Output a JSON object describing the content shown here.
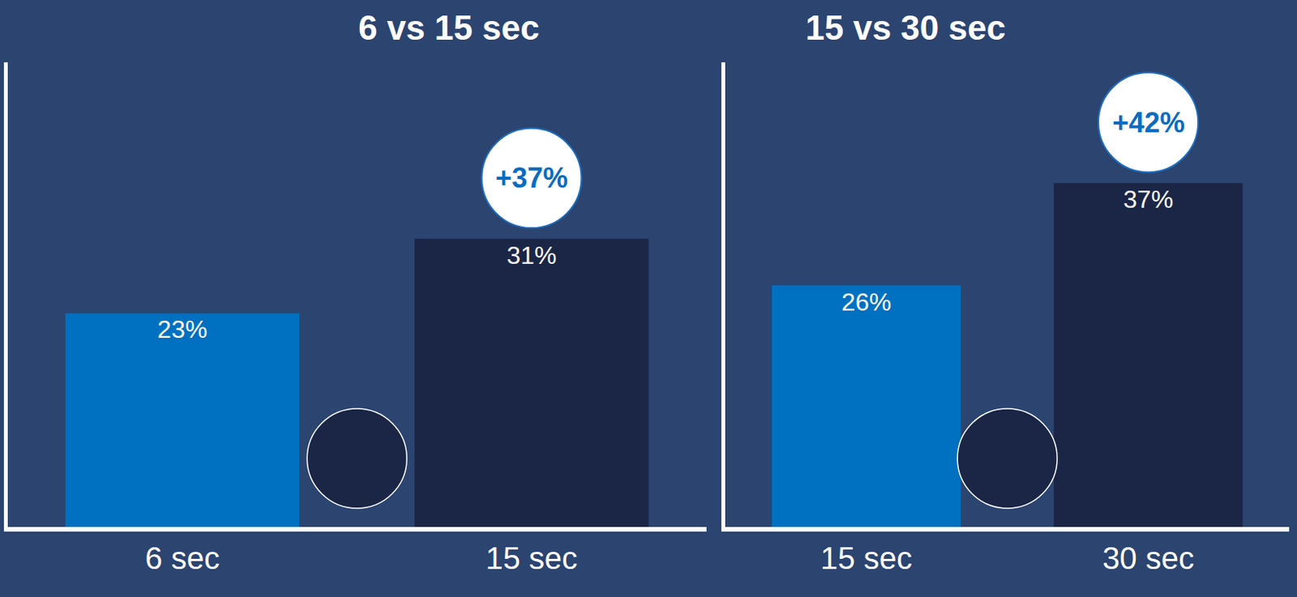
{
  "chart_data": [
    {
      "type": "bar",
      "title": "6 vs 15 sec",
      "categories": [
        "6 sec",
        "15 sec"
      ],
      "values": [
        23,
        31
      ],
      "value_labels": [
        "23%",
        "31%"
      ],
      "colors": [
        "#0070c0",
        "#1b2646"
      ],
      "annotations": [
        {
          "text": "+37%",
          "at": "15 sec"
        }
      ],
      "ylim": [
        0,
        50
      ],
      "yticks": [],
      "grid": false,
      "data_labels": true,
      "tick_labels": "x"
    },
    {
      "type": "bar",
      "title": "15 vs 30 sec",
      "categories": [
        "15 sec",
        "30 sec"
      ],
      "values": [
        26,
        37
      ],
      "value_labels": [
        "26%",
        "37%"
      ],
      "colors": [
        "#0070c0",
        "#1b2646"
      ],
      "annotations": [
        {
          "text": "+42%",
          "at": "30 sec"
        }
      ],
      "ylim": [
        0,
        50
      ],
      "yticks": [],
      "grid": false,
      "data_labels": true,
      "tick_labels": "x"
    }
  ]
}
